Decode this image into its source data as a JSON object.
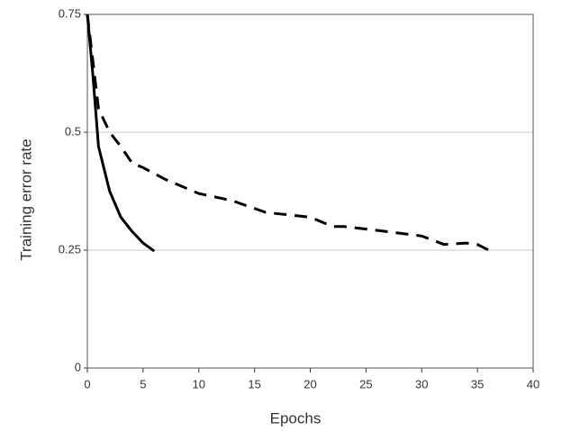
{
  "chart_data": {
    "type": "line",
    "x_label": "Epochs",
    "y_label": "Training error rate",
    "xlim": [
      0,
      40
    ],
    "xticks": [
      0,
      5,
      10,
      15,
      20,
      25,
      30,
      35,
      40
    ],
    "ylim": [
      0,
      0.75
    ],
    "yticks": [
      0,
      0.25,
      0.5,
      0.75
    ],
    "grid": true,
    "series": [
      {
        "color": "#000000",
        "dashed": false,
        "x": [
          0,
          0.5,
          1,
          2,
          3,
          4,
          5,
          6
        ],
        "values": [
          0.75,
          0.62,
          0.47,
          0.375,
          0.32,
          0.29,
          0.265,
          0.248
        ]
      },
      {
        "color": "#000000",
        "dashed": true,
        "x": [
          0,
          1,
          2,
          3,
          4,
          5,
          7,
          10,
          13,
          16,
          20,
          22,
          23,
          26,
          30,
          32,
          34,
          35,
          36
        ],
        "values": [
          0.75,
          0.55,
          0.5,
          0.47,
          0.435,
          0.425,
          0.4,
          0.37,
          0.355,
          0.33,
          0.32,
          0.3,
          0.3,
          0.292,
          0.28,
          0.262,
          0.265,
          0.262,
          0.25
        ]
      }
    ]
  }
}
